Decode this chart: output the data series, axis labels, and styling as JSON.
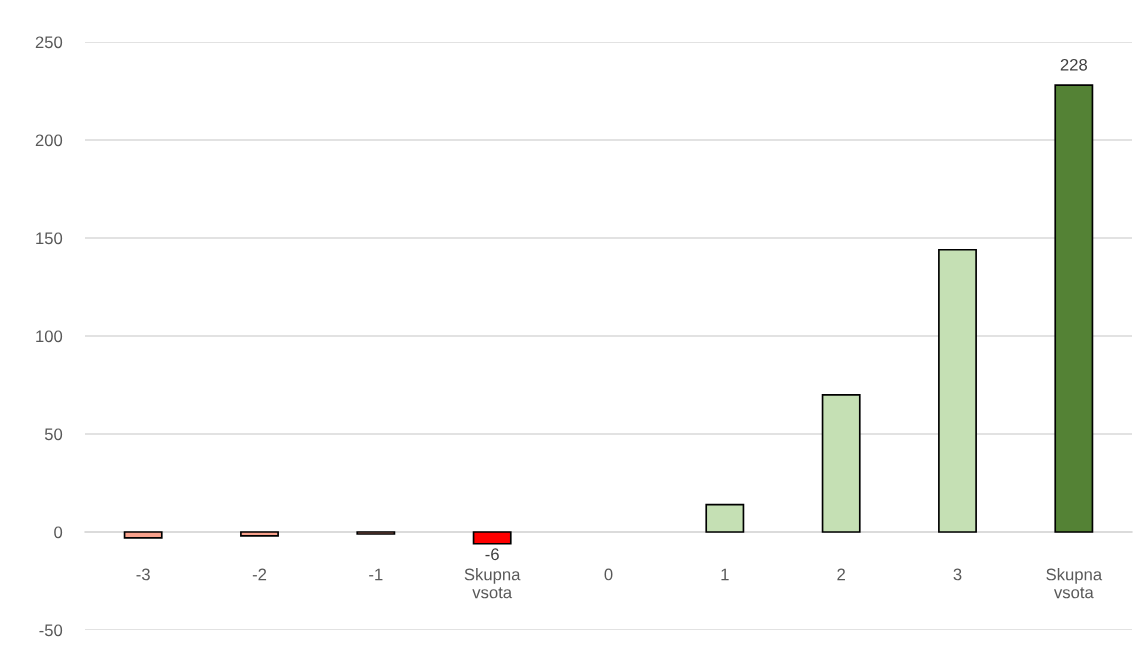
{
  "chart_data": {
    "type": "bar",
    "categories": [
      "-3",
      "-2",
      "-1",
      "Skupna vsota",
      "0",
      "1",
      "2",
      "3",
      "Skupna vsota"
    ],
    "values": [
      -3,
      -2,
      -1,
      -6,
      null,
      14,
      70,
      144,
      228
    ],
    "colors": [
      "#f8a18c",
      "#f8a18c",
      "#f8a18c",
      "#ff0000",
      null,
      "#c5e0b4",
      "#c5e0b4",
      "#c5e0b4",
      "#548235"
    ],
    "value_labels": [
      null,
      null,
      null,
      "-6",
      null,
      null,
      null,
      null,
      "228"
    ],
    "ylim": [
      -50,
      250
    ],
    "yticks": [
      -50,
      0,
      50,
      100,
      150,
      200,
      250
    ],
    "grid": "y"
  }
}
